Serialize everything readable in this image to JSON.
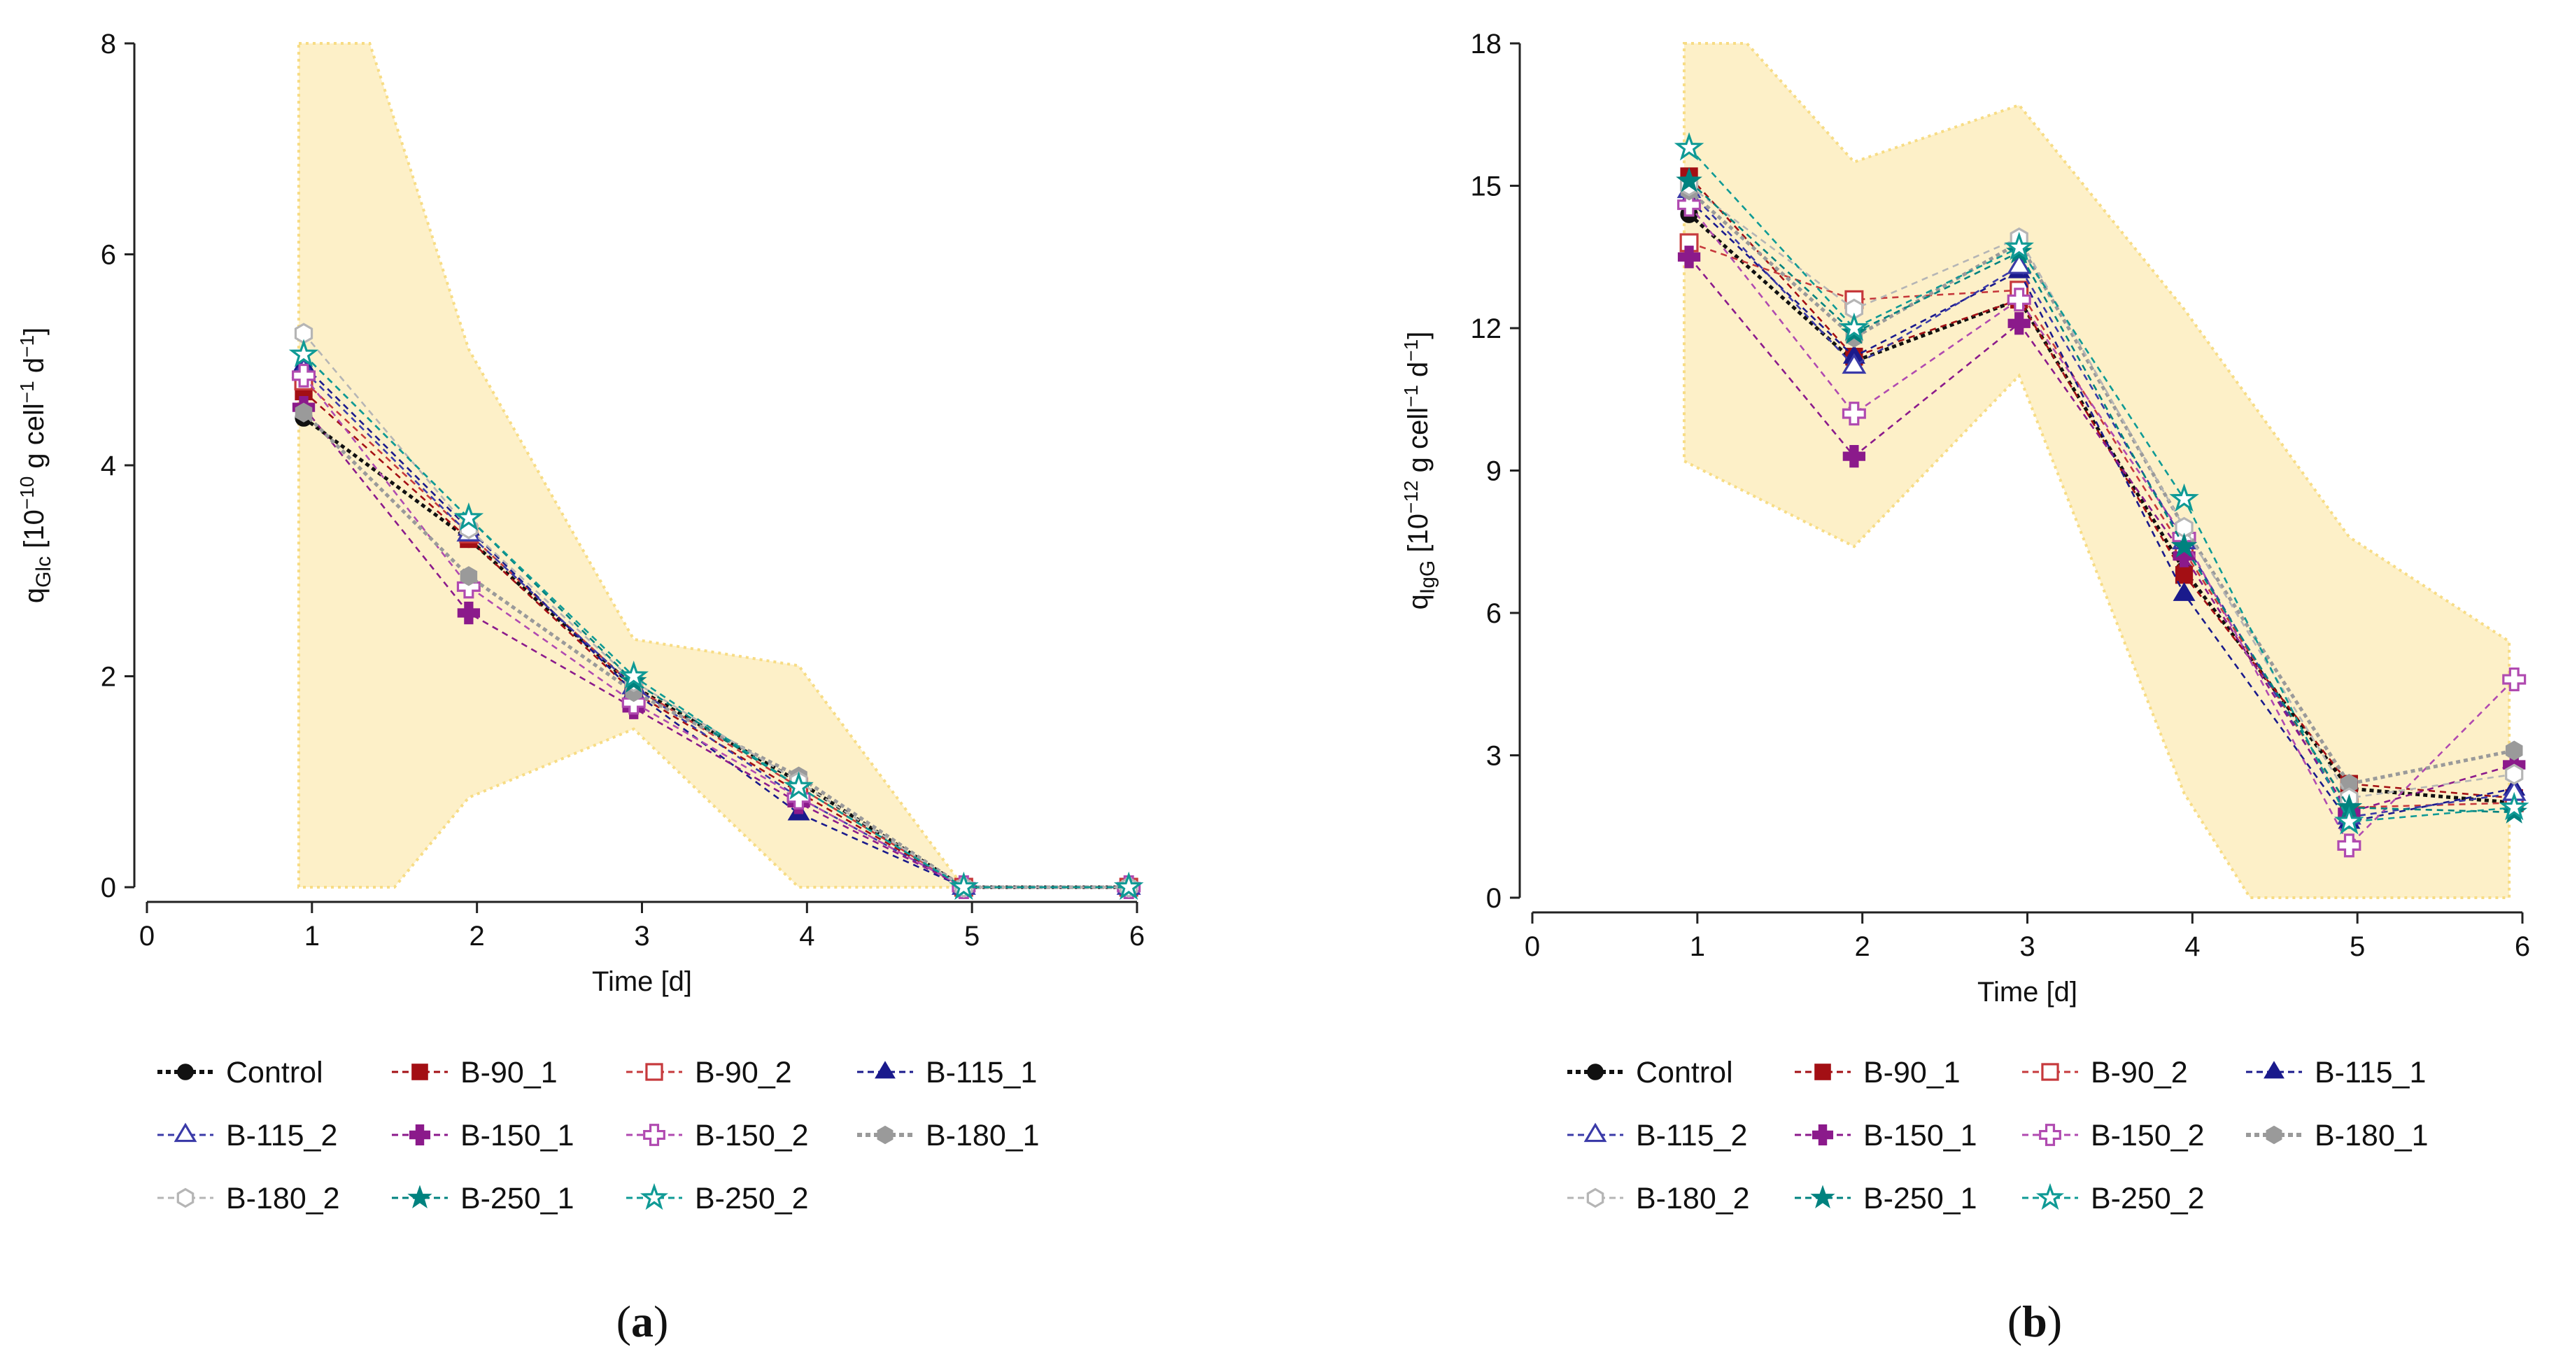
{
  "chart_data": [
    {
      "type": "line",
      "panel_label": "(a)",
      "panel_letter": "a",
      "xlabel": "Time [d]",
      "ylabel_main": "q",
      "ylabel_sub": "Glc",
      "ylabel_unit_pre": " [10",
      "ylabel_exp": "−10",
      "ylabel_unit_mid": " g cell",
      "ylabel_exp2": "−1",
      "ylabel_unit_end": " d",
      "ylabel_exp3": "−1",
      "ylabel_close": "]",
      "xlim": [
        0,
        6
      ],
      "ylim": [
        0,
        8
      ],
      "xticks": [
        "0",
        "1",
        "2",
        "3",
        "4",
        "5",
        "6"
      ],
      "yticks": [
        "0",
        "2",
        "4",
        "6",
        "8"
      ],
      "x": [
        0.95,
        1.95,
        2.95,
        3.95,
        4.95,
        5.95
      ],
      "band": {
        "upper": [
          [
            0.92,
            8.0
          ],
          [
            1.35,
            8.0
          ],
          [
            1.95,
            5.1
          ],
          [
            2.95,
            2.35
          ],
          [
            3.95,
            2.1
          ],
          [
            4.95,
            0.0
          ],
          [
            5.92,
            0.0
          ]
        ],
        "lower": [
          [
            0.92,
            0.0
          ],
          [
            1.5,
            0.0
          ],
          [
            1.95,
            0.85
          ],
          [
            2.95,
            1.5
          ],
          [
            3.95,
            0.0
          ],
          [
            4.95,
            0.0
          ],
          [
            5.92,
            0.0
          ]
        ],
        "fill": "#fdf0c8",
        "stroke": "#f7dc84"
      },
      "series": [
        {
          "name": "Control",
          "values": [
            4.45,
            3.3,
            1.9,
            1.0,
            0.0,
            0.0
          ],
          "color": "#111111",
          "marker": "circle-filled",
          "bold": true
        },
        {
          "name": "B-90_1",
          "values": [
            4.7,
            3.3,
            1.85,
            0.9,
            0.0,
            0.0
          ],
          "color": "#a30f14",
          "marker": "square-filled"
        },
        {
          "name": "B-90_2",
          "values": [
            4.8,
            3.35,
            1.9,
            0.95,
            0.0,
            0.0
          ],
          "color": "#c6393c",
          "marker": "square-open"
        },
        {
          "name": "B-115_1",
          "values": [
            4.95,
            3.4,
            1.85,
            0.7,
            0.0,
            0.0
          ],
          "color": "#1a1a8c",
          "marker": "triangle-filled"
        },
        {
          "name": "B-115_2",
          "values": [
            4.9,
            3.35,
            1.9,
            0.85,
            0.0,
            0.0
          ],
          "color": "#3a3aa8",
          "marker": "triangle-open"
        },
        {
          "name": "B-150_1",
          "values": [
            4.55,
            2.6,
            1.7,
            0.8,
            0.0,
            0.0
          ],
          "color": "#8b1a8b",
          "marker": "plus-filled"
        },
        {
          "name": "B-150_2",
          "values": [
            4.85,
            2.85,
            1.75,
            0.85,
            0.0,
            0.0
          ],
          "color": "#b04ab0",
          "marker": "plus-open"
        },
        {
          "name": "B-180_1",
          "values": [
            4.5,
            2.95,
            1.85,
            1.05,
            0.0,
            0.0
          ],
          "color": "#9a9a9a",
          "marker": "hexagon-filled",
          "bold": true
        },
        {
          "name": "B-180_2",
          "values": [
            5.25,
            3.4,
            1.95,
            1.0,
            0.0,
            0.0
          ],
          "color": "#b5b5b5",
          "marker": "hexagon-open"
        },
        {
          "name": "B-250_1",
          "values": [
            5.05,
            3.5,
            1.95,
            0.95,
            0.0,
            0.0
          ],
          "color": "#00827f",
          "marker": "star-filled"
        },
        {
          "name": "B-250_2",
          "values": [
            5.05,
            3.5,
            2.0,
            0.95,
            0.0,
            0.0
          ],
          "color": "#0f9a95",
          "marker": "star-open"
        }
      ]
    },
    {
      "type": "line",
      "panel_label": "(b)",
      "panel_letter": "b",
      "xlabel": "Time [d]",
      "ylabel_main": "q",
      "ylabel_sub": "IgG",
      "ylabel_unit_pre": " [10",
      "ylabel_exp": "−12",
      "ylabel_unit_mid": " g cell",
      "ylabel_exp2": "−1",
      "ylabel_unit_end": " d",
      "ylabel_exp3": "−1",
      "ylabel_close": "]",
      "xlim": [
        0,
        6
      ],
      "ylim": [
        0,
        18
      ],
      "xticks": [
        "0",
        "1",
        "2",
        "3",
        "4",
        "5",
        "6"
      ],
      "yticks": [
        "0",
        "3",
        "6",
        "9",
        "12",
        "15",
        "18"
      ],
      "x": [
        0.95,
        1.95,
        2.95,
        3.95,
        4.95,
        5.95
      ],
      "band": {
        "upper": [
          [
            0.92,
            18.0
          ],
          [
            1.3,
            18.0
          ],
          [
            1.95,
            15.5
          ],
          [
            2.95,
            16.7
          ],
          [
            3.95,
            12.4
          ],
          [
            4.95,
            7.6
          ],
          [
            5.92,
            5.4
          ]
        ],
        "lower": [
          [
            0.92,
            9.2
          ],
          [
            1.95,
            7.4
          ],
          [
            2.95,
            11.0
          ],
          [
            3.95,
            2.2
          ],
          [
            4.35,
            0.0
          ],
          [
            5.92,
            0.0
          ]
        ],
        "fill": "#fdf0c8",
        "stroke": "#f7dc84"
      },
      "series": [
        {
          "name": "Control",
          "values": [
            14.4,
            11.3,
            12.6,
            6.9,
            2.3,
            2.0
          ],
          "color": "#111111",
          "marker": "circle-filled",
          "bold": true
        },
        {
          "name": "B-90_1",
          "values": [
            15.2,
            11.4,
            12.6,
            6.8,
            2.4,
            2.1
          ],
          "color": "#a30f14",
          "marker": "square-filled"
        },
        {
          "name": "B-90_2",
          "values": [
            13.8,
            12.6,
            12.8,
            7.3,
            1.9,
            2.0
          ],
          "color": "#c6393c",
          "marker": "square-open"
        },
        {
          "name": "B-115_1",
          "values": [
            14.7,
            11.4,
            13.2,
            6.4,
            1.6,
            2.3
          ],
          "color": "#1a1a8c",
          "marker": "triangle-filled"
        },
        {
          "name": "B-115_2",
          "values": [
            14.9,
            11.2,
            13.3,
            7.5,
            1.7,
            2.2
          ],
          "color": "#3a3aa8",
          "marker": "triangle-open"
        },
        {
          "name": "B-150_1",
          "values": [
            13.5,
            9.3,
            12.1,
            7.2,
            1.8,
            2.8
          ],
          "color": "#8b1a8b",
          "marker": "plus-filled"
        },
        {
          "name": "B-150_2",
          "values": [
            14.6,
            10.2,
            12.6,
            7.6,
            1.1,
            4.6
          ],
          "color": "#b04ab0",
          "marker": "plus-open"
        },
        {
          "name": "B-180_1",
          "values": [
            14.9,
            11.8,
            13.8,
            7.8,
            2.4,
            3.1
          ],
          "color": "#9a9a9a",
          "marker": "hexagon-filled",
          "bold": true
        },
        {
          "name": "B-180_2",
          "values": [
            15.0,
            12.4,
            13.9,
            7.8,
            2.1,
            2.6
          ],
          "color": "#b5b5b5",
          "marker": "hexagon-open"
        },
        {
          "name": "B-250_1",
          "values": [
            15.1,
            11.9,
            13.6,
            7.4,
            1.9,
            1.8
          ],
          "color": "#00827f",
          "marker": "star-filled"
        },
        {
          "name": "B-250_2",
          "values": [
            15.8,
            12.0,
            13.7,
            8.4,
            1.6,
            1.9
          ],
          "color": "#0f9a95",
          "marker": "star-open"
        }
      ]
    }
  ]
}
